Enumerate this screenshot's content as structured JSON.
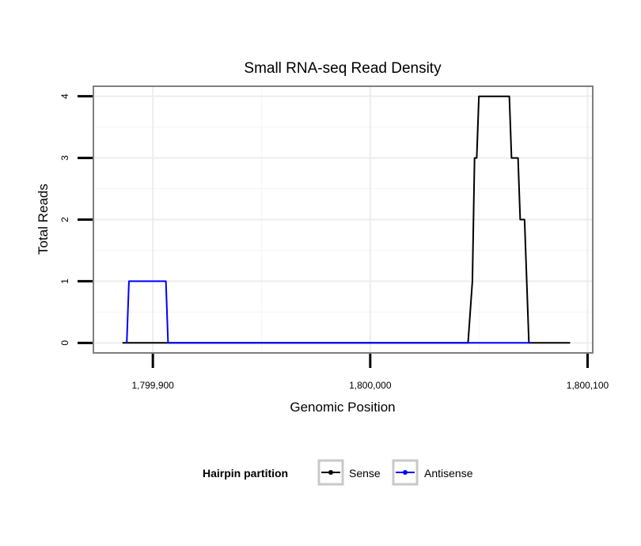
{
  "chart_data": {
    "type": "line",
    "title": "Small RNA-seq Read Density",
    "xlabel": "Genomic Position",
    "ylabel": "Total Reads",
    "xlim": [
      1799873,
      1800102
    ],
    "ylim": [
      -0.15,
      4.15
    ],
    "x_ticks": [
      1799900,
      1800000,
      1800100
    ],
    "x_tick_labels": [
      "1,799,900",
      "1,800,000",
      "1,800,100"
    ],
    "y_ticks": [
      0,
      1,
      2,
      3,
      4
    ],
    "y_tick_labels": [
      "0",
      "1",
      "2",
      "3",
      "4"
    ],
    "grid": true,
    "legend": {
      "title": "Hairpin partition",
      "position": "bottom",
      "entries": [
        "Sense",
        "Antisense"
      ]
    },
    "series": [
      {
        "name": "Sense",
        "color": "#000000",
        "x": [
          1799886,
          1800045,
          1800047,
          1800047,
          1800048,
          1800049,
          1800050,
          1800064,
          1800065,
          1800068,
          1800069,
          1800071,
          1800073,
          1800092
        ],
        "y": [
          0,
          0,
          1,
          1,
          3,
          3,
          4,
          4,
          3,
          3,
          2,
          2,
          0,
          0
        ]
      },
      {
        "name": "Antisense",
        "color": "#0000ff",
        "x": [
          1799888,
          1799889,
          1799906,
          1799907,
          1800046,
          1800074
        ],
        "y": [
          0,
          1,
          1,
          0,
          0,
          0
        ]
      }
    ]
  }
}
